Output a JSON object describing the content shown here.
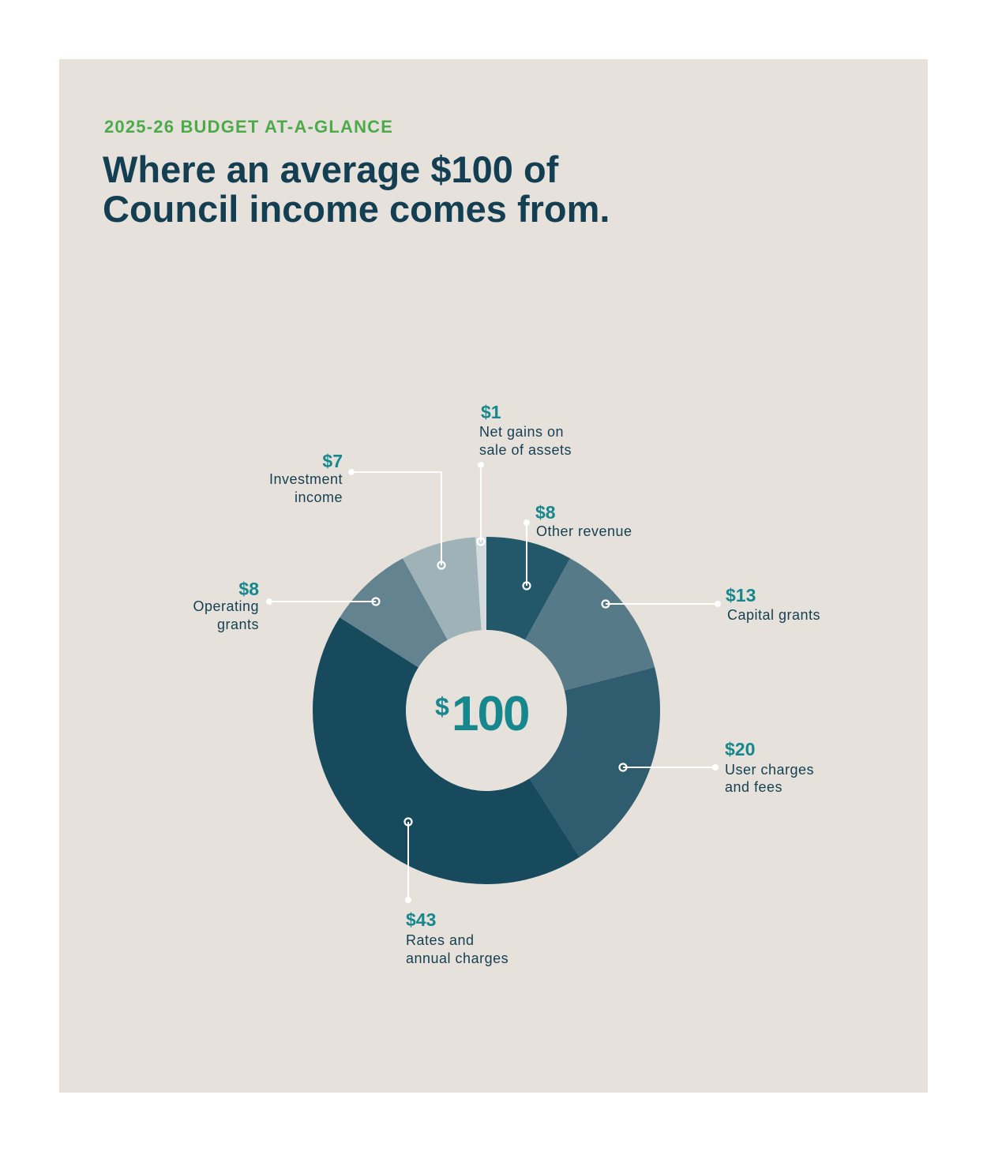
{
  "header": {
    "eyebrow": "2025-26 BUDGET AT-A-GLANCE",
    "title_line1": "Where an average $100 of",
    "title_line2": "Council income comes from."
  },
  "center": {
    "symbol": "$",
    "amount": "100"
  },
  "colors": {
    "background": "#e6e2db",
    "accent_green": "#4caa4a",
    "accent_teal": "#16878c",
    "title_navy": "#143f52"
  },
  "labels": {
    "net_gains": {
      "value": "$1",
      "line1": "Net gains on",
      "line2": "sale of assets"
    },
    "other_revenue": {
      "value": "$8",
      "line1": "Other revenue"
    },
    "capital_grants": {
      "value": "$13",
      "line1": "Capital grants"
    },
    "user_charges": {
      "value": "$20",
      "line1": "User charges",
      "line2": "and fees"
    },
    "rates": {
      "value": "$43",
      "line1": "Rates and",
      "line2": "annual charges"
    },
    "operating_grants": {
      "value": "$8",
      "line1": "Operating",
      "line2": "grants"
    },
    "investment_income": {
      "value": "$7",
      "line1": "Investment",
      "line2": "income"
    }
  },
  "chart_data": {
    "type": "pie",
    "variant": "donut",
    "total": 100,
    "categories": [
      "Other revenue",
      "Capital grants",
      "User charges and fees",
      "Rates and annual charges",
      "Operating grants",
      "Investment income",
      "Net gains on sale of assets"
    ],
    "values": [
      8,
      13,
      20,
      43,
      8,
      7,
      1
    ],
    "colors": [
      "#23576a",
      "#567a88",
      "#2f5d6f",
      "#184a5d",
      "#62838f",
      "#9eb2b8",
      "#d3dade"
    ]
  }
}
